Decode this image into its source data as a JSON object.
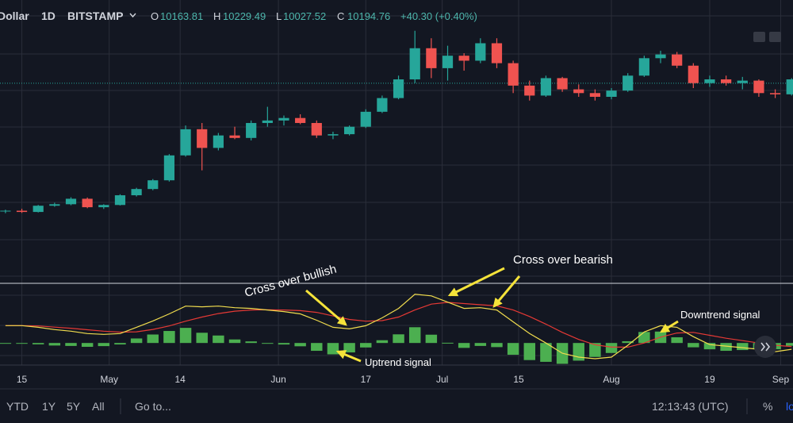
{
  "header": {
    "symbol": "Dollar",
    "interval": "1D",
    "exchange": "BITSTAMP",
    "ohlc": [
      {
        "key": "O",
        "value": 10163.81
      },
      {
        "key": "H",
        "value": 10229.49
      },
      {
        "key": "L",
        "value": 10027.52
      },
      {
        "key": "C",
        "value": 10194.76
      }
    ],
    "change": "+40.30 (+0.40%)"
  },
  "chart_data": [
    {
      "type": "candlestick",
      "up_color": "#26a69a",
      "down_color": "#ef5350",
      "xlim": [
        "Apr 11",
        "Sep 5"
      ],
      "ylim": [
        2230,
        13535
      ],
      "xticks": [
        {
          "value": "Apr 15",
          "label": "15"
        },
        {
          "value": "May 1",
          "label": "May"
        },
        {
          "value": "May 14",
          "label": "14"
        },
        {
          "value": "Jun 1",
          "label": "Jun"
        },
        {
          "value": "Jun 17",
          "label": "17"
        },
        {
          "value": "Jul 1",
          "label": "Jul"
        },
        {
          "value": "Jul 15",
          "label": "15"
        },
        {
          "value": "Aug 1",
          "label": "Aug"
        },
        {
          "value": "Aug 19",
          "label": "19"
        },
        {
          "value": "Sep 1",
          "label": "Sep"
        }
      ],
      "x": [
        "Apr 12",
        "Apr 15",
        "Apr 18",
        "Apr 21",
        "Apr 24",
        "Apr 27",
        "Apr 30",
        "May 3",
        "May 6",
        "May 9",
        "May 12",
        "May 15",
        "May 18",
        "May 21",
        "May 24",
        "May 27",
        "May 30",
        "Jun 2",
        "Jun 5",
        "Jun 8",
        "Jun 11",
        "Jun 14",
        "Jun 17",
        "Jun 20",
        "Jun 23",
        "Jun 26",
        "Jun 29",
        "Jul 2",
        "Jul 5",
        "Jul 8",
        "Jul 11",
        "Jul 14",
        "Jul 17",
        "Jul 20",
        "Jul 23",
        "Jul 26",
        "Jul 29",
        "Aug 1",
        "Aug 4",
        "Aug 7",
        "Aug 10",
        "Aug 13",
        "Aug 16",
        "Aug 19",
        "Aug 22",
        "Aug 25",
        "Aug 28",
        "Aug 31",
        "Sep 3"
      ],
      "open": [
        5050,
        5080,
        5030,
        5280,
        5340,
        5560,
        5220,
        5310,
        5700,
        5950,
        6300,
        7300,
        8350,
        7600,
        8100,
        8000,
        8600,
        8700,
        8800,
        8600,
        8100,
        8150,
        8450,
        9050,
        9600,
        10350,
        11600,
        10800,
        11300,
        11100,
        11800,
        11000,
        10100,
        9700,
        10400,
        9950,
        9800,
        9650,
        9900,
        10500,
        11200,
        11350,
        10900,
        10200,
        10350,
        10200,
        10300,
        9800,
        9750
      ],
      "high": [
        5120,
        5160,
        5310,
        5400,
        5620,
        5610,
        5340,
        5740,
        6000,
        6350,
        7350,
        8500,
        8600,
        8200,
        8450,
        8700,
        9250,
        8900,
        8950,
        8700,
        8250,
        8500,
        9150,
        9700,
        10500,
        12300,
        12000,
        11700,
        11400,
        12000,
        12000,
        11100,
        10300,
        10500,
        10450,
        10150,
        9950,
        10000,
        10600,
        11300,
        11500,
        11450,
        11000,
        10500,
        10500,
        10450,
        10350,
        9950,
        10400
      ],
      "low": [
        4980,
        4990,
        5010,
        5240,
        5300,
        5180,
        5150,
        5290,
        5650,
        5900,
        6250,
        7250,
        6700,
        7500,
        7950,
        7900,
        8450,
        8500,
        8550,
        8000,
        7950,
        8100,
        8400,
        9000,
        9550,
        10200,
        10400,
        10300,
        10700,
        11000,
        10800,
        9800,
        9500,
        9650,
        9850,
        9650,
        9500,
        9550,
        9850,
        10450,
        11000,
        10800,
        10000,
        10050,
        10100,
        9950,
        9650,
        9600,
        9700
      ],
      "close": [
        5080,
        5030,
        5280,
        5340,
        5560,
        5220,
        5310,
        5700,
        5950,
        6300,
        7300,
        8350,
        7600,
        8100,
        8000,
        8600,
        8700,
        8800,
        8600,
        8100,
        8150,
        8450,
        9050,
        9600,
        10350,
        11600,
        10800,
        11300,
        11100,
        11800,
        11000,
        10100,
        9700,
        10400,
        9950,
        9800,
        9650,
        9900,
        10500,
        11200,
        11350,
        10900,
        10200,
        10350,
        10200,
        10300,
        9800,
        9750,
        10350
      ]
    },
    {
      "type": "macd",
      "macd_color": "#f0dc4e",
      "signal_color": "#e53935",
      "histogram_color": "#4caf50",
      "xlim": [
        "Apr 11",
        "Sep 5"
      ],
      "ylim": [
        -375,
        1000
      ],
      "x": [
        "Apr 12",
        "Apr 15",
        "Apr 18",
        "Apr 21",
        "Apr 24",
        "Apr 27",
        "Apr 30",
        "May 3",
        "May 6",
        "May 9",
        "May 12",
        "May 15",
        "May 18",
        "May 21",
        "May 24",
        "May 27",
        "May 30",
        "Jun 2",
        "Jun 5",
        "Jun 8",
        "Jun 11",
        "Jun 14",
        "Jun 17",
        "Jun 20",
        "Jun 23",
        "Jun 26",
        "Jun 29",
        "Jul 2",
        "Jul 5",
        "Jul 8",
        "Jul 11",
        "Jul 14",
        "Jul 17",
        "Jul 20",
        "Jul 23",
        "Jul 26",
        "Jul 29",
        "Aug 1",
        "Aug 4",
        "Aug 7",
        "Aug 10",
        "Aug 13",
        "Aug 16",
        "Aug 19",
        "Aug 22",
        "Aug 25",
        "Aug 28",
        "Aug 31",
        "Sep 3"
      ],
      "macd": [
        295,
        295,
        267,
        227,
        200,
        160,
        147,
        160,
        267,
        374,
        494,
        627,
        614,
        627,
        600,
        587,
        560,
        534,
        494,
        387,
        267,
        240,
        294,
        427,
        587,
        828,
        801,
        694,
        587,
        600,
        560,
        360,
        160,
        0,
        -174,
        -240,
        -267,
        -240,
        -40,
        187,
        294,
        267,
        107,
        -27,
        -53,
        -80,
        -107,
        -147,
        -107
      ],
      "signal": [
        295,
        295,
        290,
        270,
        250,
        225,
        200,
        185,
        190,
        230,
        290,
        370,
        440,
        500,
        540,
        560,
        565,
        560,
        550,
        520,
        460,
        400,
        370,
        380,
        440,
        560,
        660,
        690,
        670,
        650,
        630,
        560,
        450,
        320,
        180,
        60,
        -30,
        -70,
        -70,
        0,
        100,
        170,
        180,
        130,
        80,
        40,
        0,
        -40,
        -60
      ],
      "histogram": [
        0,
        0,
        -23,
        -43,
        -50,
        -65,
        -53,
        -25,
        77,
        144,
        204,
        257,
        174,
        127,
        60,
        27,
        -5,
        -26,
        -56,
        -133,
        -193,
        -160,
        -76,
        47,
        147,
        268,
        141,
        4,
        -83,
        -50,
        -70,
        -200,
        -290,
        -320,
        -354,
        -300,
        -237,
        -170,
        30,
        187,
        194,
        97,
        -73,
        -107,
        -133,
        -120,
        -107,
        -107,
        -47
      ],
      "annotations": [
        "Cross over bullish",
        "Cross over bearish",
        "Downtrend signal",
        "Uptrend signal"
      ]
    }
  ],
  "toolbar": {
    "ranges": [
      "YTD",
      "1Y",
      "5Y",
      "All"
    ],
    "goto": "Go to...",
    "clock": "12:13:43 (UTC)",
    "percent": "%",
    "log": "log"
  }
}
